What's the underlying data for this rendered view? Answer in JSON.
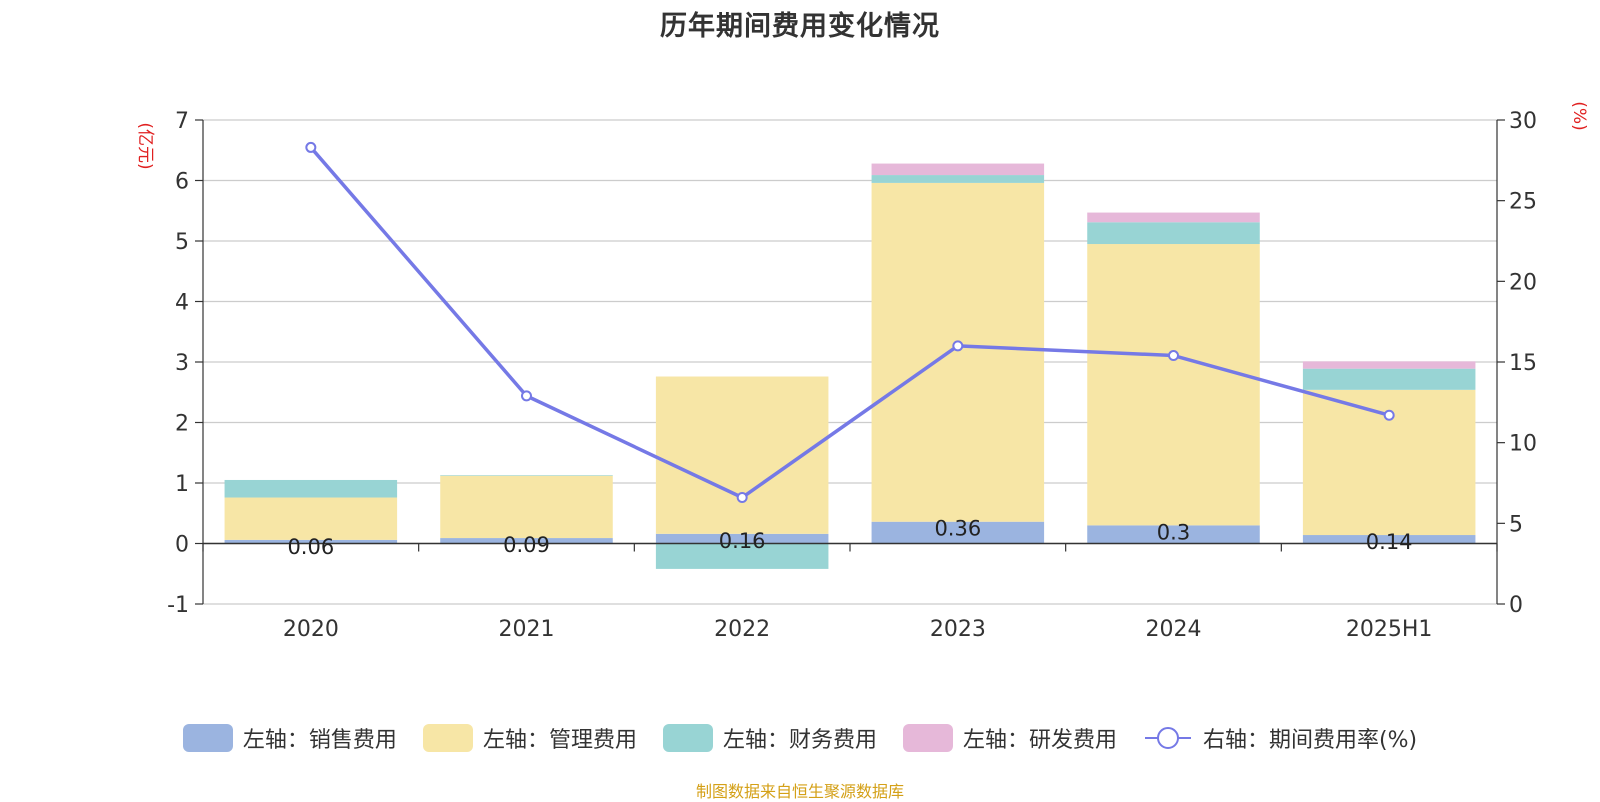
{
  "title": "历年期间费用变化情况",
  "source_note": "制图数据来自恒生聚源数据库",
  "chart_data": {
    "type": "bar",
    "stacked": true,
    "title": "历年期间费用变化情况",
    "categories": [
      "2020",
      "2021",
      "2022",
      "2023",
      "2024",
      "2025H1"
    ],
    "y_left": {
      "unit": "(亿元)",
      "ylim": [
        -1,
        7
      ],
      "ticks": [
        -1,
        0,
        1,
        2,
        3,
        4,
        5,
        6,
        7
      ]
    },
    "y_right": {
      "unit": "(%)",
      "ylim": [
        0,
        30
      ],
      "ticks": [
        0,
        5,
        10,
        15,
        20,
        25,
        30
      ]
    },
    "grid": true,
    "legend_position": "bottom",
    "series": [
      {
        "name": "左轴：销售费用",
        "axis": "left",
        "color": "#9bb4e0",
        "values": [
          0.06,
          0.09,
          0.16,
          0.36,
          0.3,
          0.14
        ],
        "labels": [
          "0.06",
          "0.09",
          "0.16",
          "0.36",
          "0.3",
          "0.14"
        ]
      },
      {
        "name": "左轴：管理费用",
        "axis": "left",
        "color": "#f7e6a6",
        "values": [
          0.7,
          1.03,
          2.6,
          5.6,
          4.65,
          2.4
        ]
      },
      {
        "name": "左轴：财务费用",
        "axis": "left",
        "color": "#98d4d4",
        "values": [
          0.29,
          0.01,
          -0.42,
          0.13,
          0.36,
          0.35
        ]
      },
      {
        "name": "左轴：研发费用",
        "axis": "left",
        "color": "#e6b8d9",
        "values": [
          0,
          0,
          0,
          0.19,
          0.16,
          0.12
        ]
      },
      {
        "name": "右轴：期间费用率(%)",
        "axis": "right",
        "type": "line",
        "color": "#7579e6",
        "values": [
          28.3,
          12.9,
          6.6,
          16.0,
          15.4,
          11.7
        ]
      }
    ]
  }
}
